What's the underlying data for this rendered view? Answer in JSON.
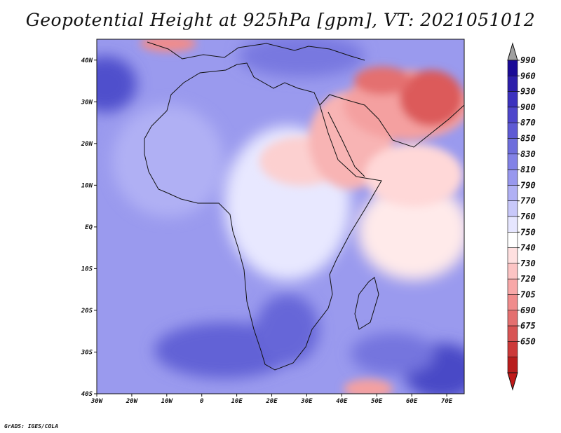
{
  "title": "Geopotential Height at 925hPa [gpm], VT: 2021051012",
  "credit": "GrADS: IGES/COLA",
  "map": {
    "lon_range": [
      -30,
      75
    ],
    "lat_range": [
      -40,
      45
    ],
    "lat_ticks": [
      {
        "value": 40,
        "label": "40N"
      },
      {
        "value": 30,
        "label": "30N"
      },
      {
        "value": 20,
        "label": "20N"
      },
      {
        "value": 10,
        "label": "10N"
      },
      {
        "value": 0,
        "label": "EQ"
      },
      {
        "value": -10,
        "label": "10S"
      },
      {
        "value": -20,
        "label": "20S"
      },
      {
        "value": -30,
        "label": "30S"
      },
      {
        "value": -40,
        "label": "40S"
      }
    ],
    "lon_ticks": [
      {
        "value": -30,
        "label": "30W"
      },
      {
        "value": -20,
        "label": "20W"
      },
      {
        "value": -10,
        "label": "10W"
      },
      {
        "value": 0,
        "label": "0"
      },
      {
        "value": 10,
        "label": "10E"
      },
      {
        "value": 20,
        "label": "20E"
      },
      {
        "value": 30,
        "label": "30E"
      },
      {
        "value": 40,
        "label": "40E"
      },
      {
        "value": 50,
        "label": "50E"
      },
      {
        "value": 60,
        "label": "60E"
      },
      {
        "value": 70,
        "label": "70E"
      }
    ]
  },
  "colorbar": {
    "levels": [
      "990",
      "960",
      "930",
      "900",
      "870",
      "850",
      "830",
      "810",
      "790",
      "770",
      "760",
      "750",
      "740",
      "730",
      "720",
      "705",
      "690",
      "675",
      "650"
    ],
    "colors": [
      "#1a0a96",
      "#2c1eaa",
      "#3c32be",
      "#4e46cb",
      "#5e5ad4",
      "#6e6edc",
      "#8282e6",
      "#9898ee",
      "#b0b0f4",
      "#c8c8fa",
      "#e6e6ff",
      "#ffffff",
      "#ffe0e0",
      "#fcc4c4",
      "#f8a8a8",
      "#f08c8c",
      "#e47070",
      "#d85454",
      "#cc3838",
      "#b81c1c"
    ],
    "top_color": "#a0a0a0",
    "bottom_color": "#c01818"
  }
}
